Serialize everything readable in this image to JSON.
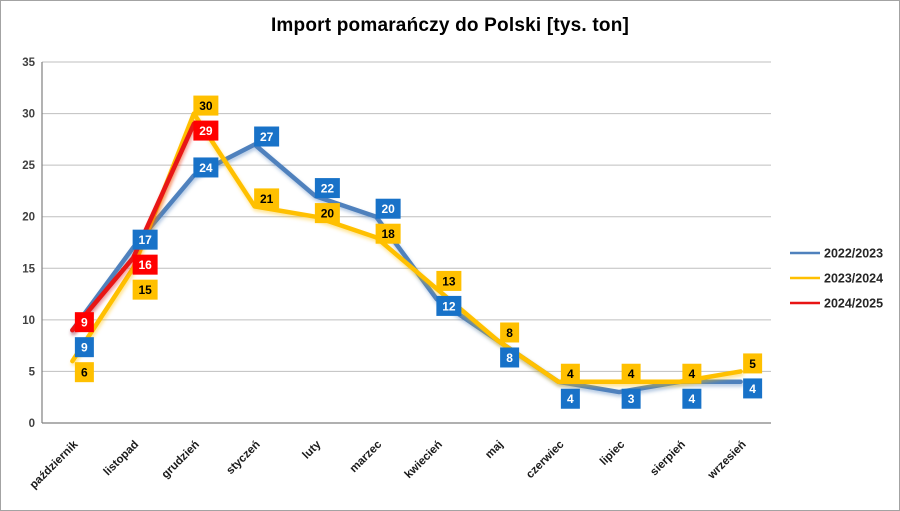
{
  "window": {
    "background": "#FFFFFF",
    "border_color": "#A3A3A3"
  },
  "chart_data": {
    "type": "line",
    "title": "Import pomarańczy do Polski [tys. ton]",
    "categories": [
      "październik",
      "listopad",
      "grudzień",
      "styczeń",
      "luty",
      "marzec",
      "kwiecień",
      "maj",
      "czerwiec",
      "lipiec",
      "sierpień",
      "wrzesień"
    ],
    "series": [
      {
        "name": "2022/2023",
        "line_color": "#4F81BD",
        "label_bg": "#1872C8",
        "label_color": "#FFFFFF",
        "values": [
          9,
          17,
          24,
          27,
          22,
          20,
          12,
          8,
          4,
          3,
          4,
          4
        ]
      },
      {
        "name": "2023/2024",
        "line_color": "#FFC000",
        "label_bg": "#FFC000",
        "label_color": "#000000",
        "values": [
          6,
          15,
          30,
          21,
          20,
          18,
          13,
          8,
          4,
          4,
          4,
          5
        ]
      },
      {
        "name": "2024/2025",
        "line_color": "#E81414",
        "label_bg": "#FF0000",
        "label_color": "#FFFFFF",
        "values": [
          9,
          16,
          29,
          null,
          null,
          null,
          null,
          null,
          null,
          null,
          null,
          null
        ]
      }
    ],
    "ylim": [
      0,
      35
    ],
    "yticks": [
      0,
      5,
      10,
      15,
      20,
      25,
      30,
      35
    ],
    "grid": true,
    "data_labels": true,
    "legend_position": "right"
  },
  "colors": {
    "gridline": "#BFBFBF",
    "axis": "#808080",
    "y_tick_label": "#404040",
    "x_tick_label": "#1A1A1A",
    "legend_text": "#262626",
    "title": "#000000"
  }
}
